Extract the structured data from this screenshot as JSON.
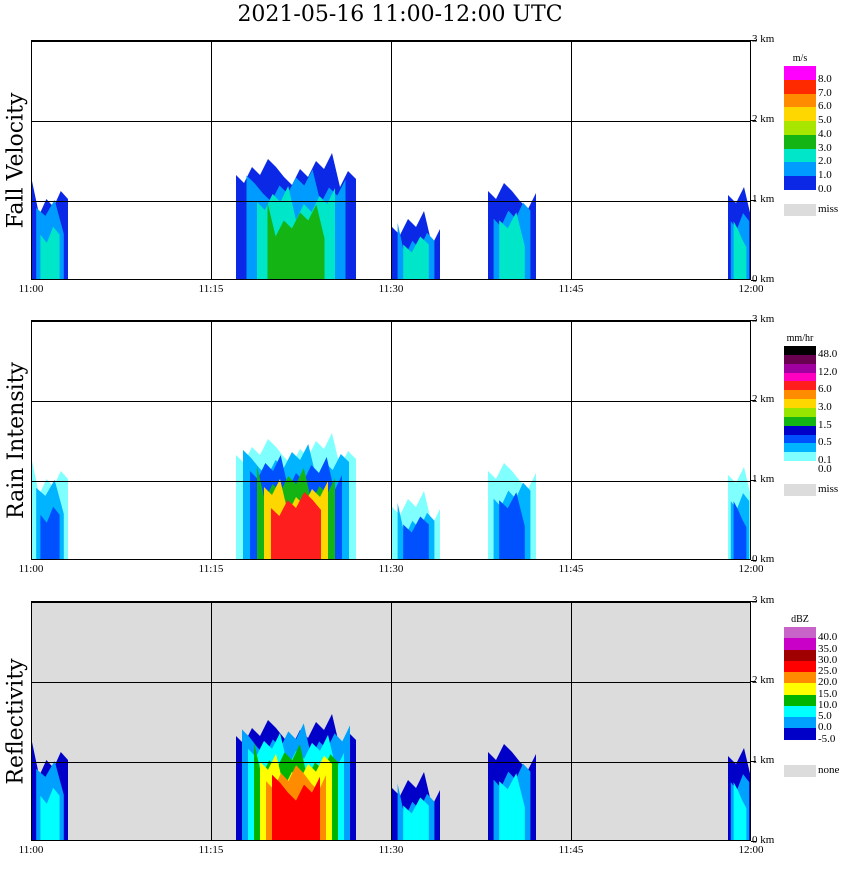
{
  "title": "2021-05-16   11:00-12:00 UTC",
  "x_ticks": [
    "11:00",
    "11:15",
    "11:30",
    "11:45",
    "12:00"
  ],
  "y_ticks": [
    "0 km",
    "1 km",
    "2 km",
    "3 km"
  ],
  "panels": [
    {
      "ylabel": "Fall Velocity",
      "units": "m/s",
      "legend": [
        {
          "color": "#ff00ff",
          "label": "8.0"
        },
        {
          "color": "#ff2a00",
          "label": "7.0"
        },
        {
          "color": "#ff8c00",
          "label": "6.0"
        },
        {
          "color": "#ffd700",
          "label": "5.0"
        },
        {
          "color": "#a8e600",
          "label": "4.0"
        },
        {
          "color": "#13b413",
          "label": "3.0"
        },
        {
          "color": "#00e6c8",
          "label": "2.0"
        },
        {
          "color": "#009bff",
          "label": "1.0"
        },
        {
          "color": "#0a28e6",
          "label": "0.0"
        },
        {
          "color": "#dcdcdc",
          "label": "miss"
        }
      ],
      "background": "#ffffff"
    },
    {
      "ylabel": "Rain Intensity",
      "units": "mm/hr",
      "legend": [
        {
          "color": "#000000",
          "label": "48.0"
        },
        {
          "color": "#6a0050",
          "label": ""
        },
        {
          "color": "#a000a0",
          "label": "12.0"
        },
        {
          "color": "#ff00c0",
          "label": ""
        },
        {
          "color": "#ff1e1e",
          "label": "6.0"
        },
        {
          "color": "#ff8c00",
          "label": ""
        },
        {
          "color": "#ffd700",
          "label": "3.0"
        },
        {
          "color": "#96e600",
          "label": ""
        },
        {
          "color": "#13b413",
          "label": "1.5"
        },
        {
          "color": "#0000c8",
          "label": ""
        },
        {
          "color": "#0050ff",
          "label": "0.5"
        },
        {
          "color": "#00b4ff",
          "label": ""
        },
        {
          "color": "#80ffff",
          "label": "0.1"
        },
        {
          "color": "#ffffff",
          "label": "0.0"
        },
        {
          "color": "#dcdcdc",
          "label": "miss"
        }
      ],
      "background": "#ffffff"
    },
    {
      "ylabel": "Reflectivity",
      "units": "dBZ",
      "legend": [
        {
          "color": "#c864c8",
          "label": "40.0"
        },
        {
          "color": "#c800c8",
          "label": "35.0"
        },
        {
          "color": "#a00000",
          "label": "30.0"
        },
        {
          "color": "#ff0000",
          "label": "25.0"
        },
        {
          "color": "#ff8c00",
          "label": "20.0"
        },
        {
          "color": "#ffff00",
          "label": "15.0"
        },
        {
          "color": "#00b400",
          "label": "10.0"
        },
        {
          "color": "#00ffff",
          "label": "5.0"
        },
        {
          "color": "#00a0ff",
          "label": "0.0"
        },
        {
          "color": "#0000c8",
          "label": "-5.0"
        },
        {
          "color": "#ffffff",
          "label": ""
        },
        {
          "color": "#dcdcdc",
          "label": "none"
        }
      ],
      "background": "#dcdcdc"
    }
  ],
  "chart_data": {
    "type": "heatmap",
    "title": "2021-05-16   11:00-12:00 UTC",
    "x_range": [
      "11:00",
      "12:00"
    ],
    "ylim_km": [
      0,
      3
    ],
    "panels": [
      "Fall Velocity",
      "Rain Intensity",
      "Reflectivity"
    ],
    "echo_regions": [
      {
        "start": "11:00",
        "end": "11:03",
        "top_km": 1.15,
        "core": false
      },
      {
        "start": "11:17",
        "end": "11:27",
        "top_km": 1.5,
        "core": true
      },
      {
        "start": "11:30",
        "end": "11:34",
        "top_km": 0.8,
        "core": false
      },
      {
        "start": "11:38",
        "end": "11:42",
        "top_km": 1.2,
        "core": false
      },
      {
        "start": "11:58",
        "end": "12:00",
        "top_km": 1.1,
        "core": false
      }
    ]
  }
}
